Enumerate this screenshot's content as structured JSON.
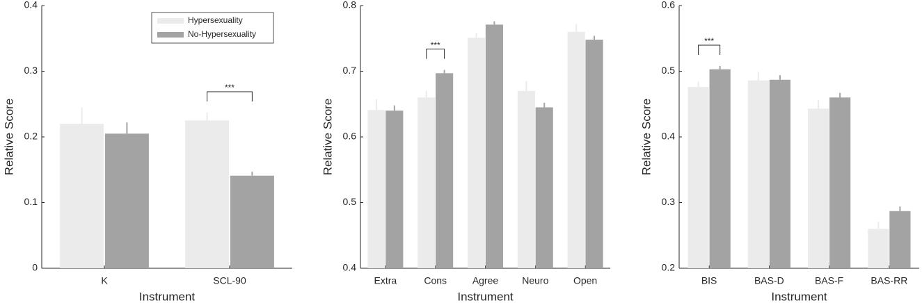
{
  "chart_data": [
    {
      "type": "bar",
      "ylabel": "Relative Score",
      "xlabel": "Instrument",
      "categories": [
        "K",
        "SCL-90"
      ],
      "series": [
        {
          "name": "Hypersexuality",
          "color": "#ebebeb",
          "values": [
            0.22,
            0.225
          ],
          "errors": [
            0.025,
            0.012
          ]
        },
        {
          "name": "No-Hypersexuality",
          "color": "#a3a3a3",
          "values": [
            0.205,
            0.141
          ],
          "errors": [
            0.017,
            0.006
          ]
        }
      ],
      "ylim": [
        0,
        0.4
      ],
      "yticks": [
        0,
        0.1,
        0.2,
        0.3,
        0.4
      ],
      "legend": "upper right",
      "significance": [
        {
          "label": "***",
          "category": "SCL-90"
        }
      ]
    },
    {
      "type": "bar",
      "ylabel": "Relative Score",
      "xlabel": "Instrument",
      "categories": [
        "Extra",
        "Cons",
        "Agree",
        "Neuro",
        "Open"
      ],
      "series": [
        {
          "color": "#ebebeb",
          "values": [
            0.641,
            0.66,
            0.751,
            0.67,
            0.76
          ],
          "errors": [
            0.016,
            0.01,
            0.007,
            0.015,
            0.012
          ]
        },
        {
          "color": "#a3a3a3",
          "values": [
            0.64,
            0.697,
            0.771,
            0.645,
            0.748
          ],
          "errors": [
            0.008,
            0.005,
            0.005,
            0.007,
            0.006
          ]
        }
      ],
      "ylim": [
        0.4,
        0.8
      ],
      "yticks": [
        0.4,
        0.5,
        0.6,
        0.7,
        0.8
      ],
      "significance": [
        {
          "label": "***",
          "category": "Cons"
        }
      ]
    },
    {
      "type": "bar",
      "ylabel": "Relative Score",
      "xlabel": "Instrument",
      "categories": [
        "BIS",
        "BAS-D",
        "BAS-F",
        "BAS-RR"
      ],
      "series": [
        {
          "color": "#ebebeb",
          "values": [
            0.476,
            0.486,
            0.443,
            0.26
          ],
          "errors": [
            0.008,
            0.013,
            0.013,
            0.011
          ]
        },
        {
          "color": "#a3a3a3",
          "values": [
            0.503,
            0.487,
            0.46,
            0.287
          ],
          "errors": [
            0.005,
            0.007,
            0.007,
            0.007
          ]
        }
      ],
      "ylim": [
        0.2,
        0.6
      ],
      "yticks": [
        0.2,
        0.3,
        0.4,
        0.5,
        0.6
      ],
      "significance": [
        {
          "label": "***",
          "category": "BIS"
        }
      ]
    }
  ]
}
